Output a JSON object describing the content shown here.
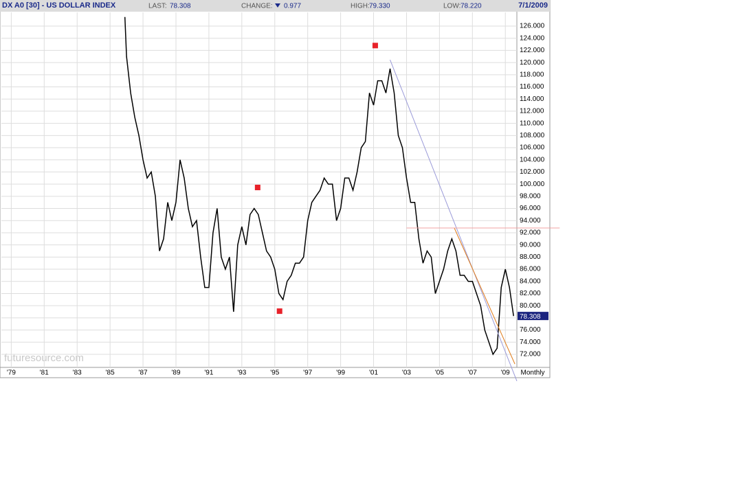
{
  "header": {
    "symbol": "DX A0 [30] - US DOLLAR INDEX",
    "last_label": "LAST:",
    "last": "78.308",
    "change_label": "CHANGE:",
    "change": "0.977",
    "high_label": "HIGH:",
    "high": "79.330",
    "low_label": "LOW:",
    "low": "78.220",
    "date": "7/1/2009"
  },
  "chart_data": {
    "type": "line",
    "frequency": "Monthly",
    "watermark": "futuresource.com",
    "color": "#000000",
    "grid": true,
    "xlim": [
      1978.4,
      2009.7
    ],
    "ylim": [
      69.85,
      128.26
    ],
    "xticks": [
      {
        "value": 1979,
        "label": "'79"
      },
      {
        "value": 1981,
        "label": "'81"
      },
      {
        "value": 1983,
        "label": "'83"
      },
      {
        "value": 1985,
        "label": "'85"
      },
      {
        "value": 1987,
        "label": "'87"
      },
      {
        "value": 1989,
        "label": "'89"
      },
      {
        "value": 1991,
        "label": "'91"
      },
      {
        "value": 1993,
        "label": "'93"
      },
      {
        "value": 1995,
        "label": "'95"
      },
      {
        "value": 1997,
        "label": "'97"
      },
      {
        "value": 1999,
        "label": "'99"
      },
      {
        "value": 2001,
        "label": "'01"
      },
      {
        "value": 2003,
        "label": "'03"
      },
      {
        "value": 2005,
        "label": "'05"
      },
      {
        "value": 2007,
        "label": "'07"
      },
      {
        "value": 2009,
        "label": "'09"
      }
    ],
    "yticks": [
      {
        "value": 72,
        "label": "72.000"
      },
      {
        "value": 74,
        "label": "74.000"
      },
      {
        "value": 76,
        "label": "76.000"
      },
      {
        "value": 78,
        "label": "78.000"
      },
      {
        "value": 80,
        "label": "80.000"
      },
      {
        "value": 82,
        "label": "82.000"
      },
      {
        "value": 84,
        "label": "84.000"
      },
      {
        "value": 86,
        "label": "86.000"
      },
      {
        "value": 88,
        "label": "88.000"
      },
      {
        "value": 90,
        "label": "90.000"
      },
      {
        "value": 92,
        "label": "92.000"
      },
      {
        "value": 94,
        "label": "94.000"
      },
      {
        "value": 96,
        "label": "96.000"
      },
      {
        "value": 98,
        "label": "98.000"
      },
      {
        "value": 100,
        "label": "100.000"
      },
      {
        "value": 102,
        "label": "102.000"
      },
      {
        "value": 104,
        "label": "104.000"
      },
      {
        "value": 106,
        "label": "106.000"
      },
      {
        "value": 108,
        "label": "108.000"
      },
      {
        "value": 110,
        "label": "110.000"
      },
      {
        "value": 112,
        "label": "112.000"
      },
      {
        "value": 114,
        "label": "114.000"
      },
      {
        "value": 116,
        "label": "116.000"
      },
      {
        "value": 118,
        "label": "118.000"
      },
      {
        "value": 120,
        "label": "120.000"
      },
      {
        "value": 122,
        "label": "122.000"
      },
      {
        "value": 124,
        "label": "124.000"
      },
      {
        "value": 126,
        "label": "126.000"
      }
    ],
    "x": [
      1985.9,
      1986,
      1986.25,
      1986.5,
      1986.75,
      1987,
      1987.25,
      1987.5,
      1987.75,
      1988,
      1988.25,
      1988.5,
      1988.75,
      1989,
      1989.25,
      1989.5,
      1989.75,
      1990,
      1990.25,
      1990.5,
      1990.75,
      1991,
      1991.25,
      1991.5,
      1991.75,
      1992,
      1992.25,
      1992.5,
      1992.75,
      1993,
      1993.25,
      1993.5,
      1993.75,
      1994,
      1994.25,
      1994.5,
      1994.75,
      1995,
      1995.25,
      1995.5,
      1995.75,
      1996,
      1996.25,
      1996.5,
      1996.75,
      1997,
      1997.25,
      1997.5,
      1997.75,
      1998,
      1998.25,
      1998.5,
      1998.75,
      1999,
      1999.25,
      1999.5,
      1999.75,
      2000,
      2000.25,
      2000.5,
      2000.75,
      2001,
      2001.25,
      2001.5,
      2001.75,
      2002,
      2002.25,
      2002.5,
      2002.75,
      2003,
      2003.25,
      2003.5,
      2003.75,
      2004,
      2004.25,
      2004.5,
      2004.75,
      2005,
      2005.25,
      2005.5,
      2005.75,
      2006,
      2006.25,
      2006.5,
      2006.75,
      2007,
      2007.25,
      2007.5,
      2007.75,
      2008,
      2008.25,
      2008.5,
      2008.75,
      2009,
      2009.25,
      2009.5
    ],
    "values": [
      127.5,
      121,
      115,
      111,
      108,
      104,
      101,
      102,
      98,
      89,
      91,
      97,
      94,
      97,
      104,
      101,
      96,
      93,
      94,
      88,
      83,
      83,
      92,
      96,
      88,
      86,
      88,
      79,
      90,
      93,
      90,
      95,
      96,
      95,
      92,
      89,
      88,
      86,
      82,
      81,
      84,
      85,
      87,
      87,
      88,
      94,
      97,
      98,
      99,
      101,
      100,
      100,
      94,
      96,
      101,
      101,
      99,
      102,
      106,
      107,
      115,
      113,
      117,
      117,
      115,
      119,
      115,
      108,
      106,
      101,
      97,
      97,
      91,
      87,
      89,
      88,
      82,
      84,
      86,
      89,
      91,
      89,
      85,
      85,
      84,
      84,
      82,
      80,
      76,
      74,
      72,
      73,
      83,
      86,
      83,
      78.3
    ],
    "current": {
      "value": 78.308,
      "label": "78.308"
    },
    "markers": {
      "color": "#e8222a",
      "x": [
        1993.96,
        1995.29,
        2001.1
      ],
      "y": [
        99.45,
        79.1,
        122.8
      ]
    },
    "lines": [
      {
        "color": "#9a9ad8",
        "x": [
          2002,
          2009.7
        ],
        "y": [
          120.46,
          67.6
        ]
      },
      {
        "color": "#e07b1a",
        "x": [
          2005.9,
          2009.58
        ],
        "y": [
          92.8,
          70.4
        ]
      },
      {
        "color": "#f0a0a0",
        "x": [
          2003,
          2012.3
        ],
        "y": [
          92.78,
          92.78
        ]
      }
    ]
  }
}
